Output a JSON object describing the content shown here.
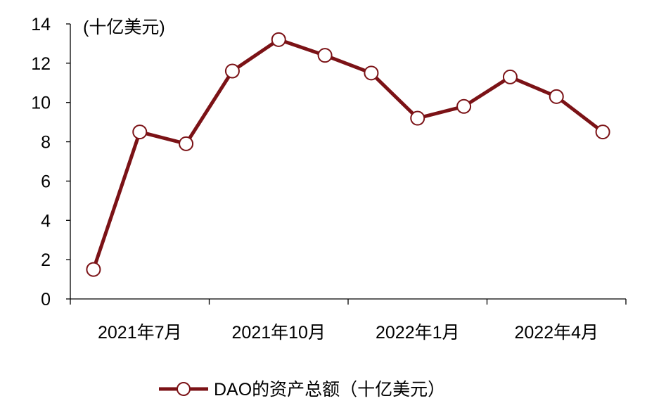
{
  "chart_data": {
    "type": "line",
    "title": "",
    "unit_label": "(十亿美元)",
    "ylim": [
      0,
      14
    ],
    "y_ticks": [
      0,
      2,
      4,
      6,
      8,
      10,
      12,
      14
    ],
    "x_tick_labels": [
      "2021年7月",
      "2021年10月",
      "2022年1月",
      "2022年4月"
    ],
    "x": [
      "2021-06",
      "2021-07",
      "2021-08",
      "2021-09",
      "2021-10",
      "2021-11",
      "2021-12",
      "2022-01",
      "2022-02",
      "2022-03",
      "2022-04",
      "2022-05"
    ],
    "series": [
      {
        "name": "DAO的资产总额（十亿美元）",
        "color": "#7b1216",
        "values": [
          1.5,
          8.5,
          7.9,
          11.6,
          13.2,
          12.4,
          11.5,
          9.2,
          9.8,
          11.3,
          10.3,
          8.5
        ]
      }
    ],
    "legend_position": "bottom",
    "grid": false
  }
}
